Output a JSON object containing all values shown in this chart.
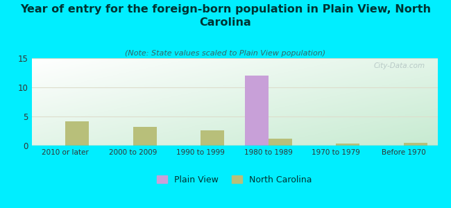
{
  "title": "Year of entry for the foreign-born population in Plain View, North\nCarolina",
  "subtitle": "(Note: State values scaled to Plain View population)",
  "categories": [
    "2010 or later",
    "2000 to 2009",
    "1990 to 1999",
    "1980 to 1989",
    "1970 to 1979",
    "Before 1970"
  ],
  "plain_view_values": [
    0,
    0,
    0,
    12,
    0,
    0
  ],
  "nc_values": [
    4.2,
    3.2,
    2.6,
    1.2,
    0.4,
    0.5
  ],
  "plain_view_color": "#c8a0d8",
  "nc_color": "#b8bf7a",
  "background_color": "#00eeff",
  "ylim": [
    0,
    15
  ],
  "yticks": [
    0,
    5,
    10,
    15
  ],
  "bar_width": 0.35,
  "title_fontsize": 11.5,
  "subtitle_fontsize": 8,
  "watermark": "City-Data.com",
  "title_color": "#003333",
  "subtitle_color": "#336666",
  "tick_color": "#333333"
}
